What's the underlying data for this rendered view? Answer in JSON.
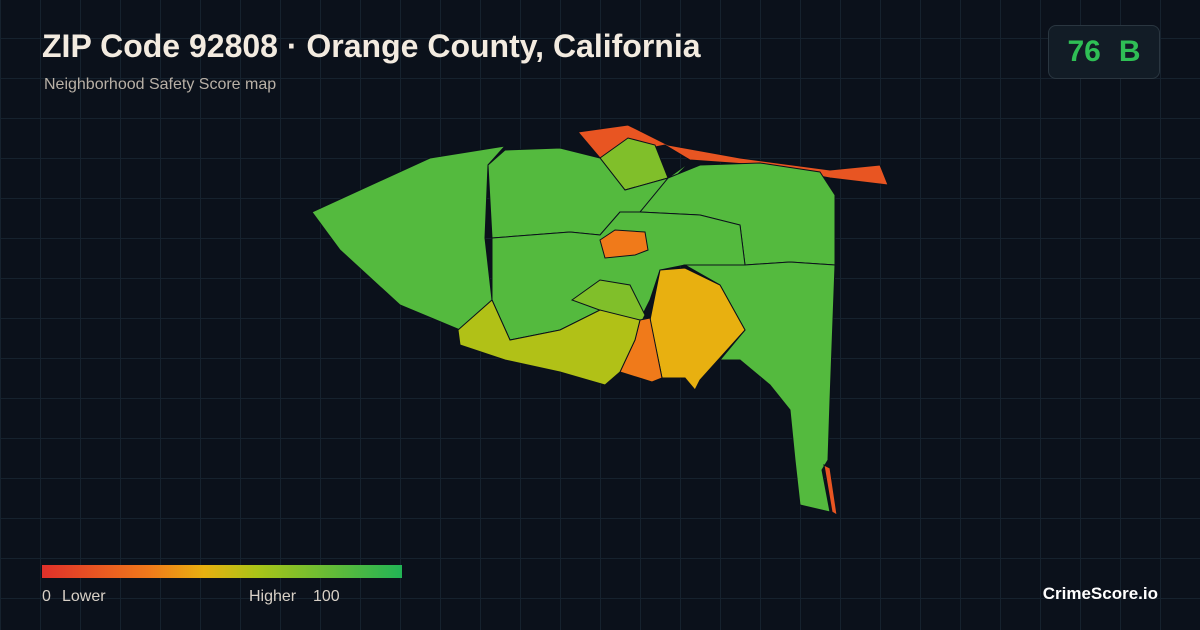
{
  "header": {
    "title": "ZIP Code 92808 · Orange County, California",
    "subtitle": "Neighborhood Safety Score map"
  },
  "badge": {
    "score": "76",
    "grade": "B"
  },
  "legend": {
    "min": 0,
    "min_label": "Lower",
    "max_label": "Higher",
    "max": 100
  },
  "brand": "CrimeScore.io",
  "regions": [
    {
      "score": 15
    },
    {
      "score": 72
    },
    {
      "score": 85
    },
    {
      "score": 85
    },
    {
      "score": 85
    },
    {
      "score": 85
    },
    {
      "score": 30
    },
    {
      "score": 72
    },
    {
      "score": 85
    },
    {
      "score": 45
    },
    {
      "score": 30
    },
    {
      "score": 58
    },
    {
      "score": 15
    }
  ]
}
